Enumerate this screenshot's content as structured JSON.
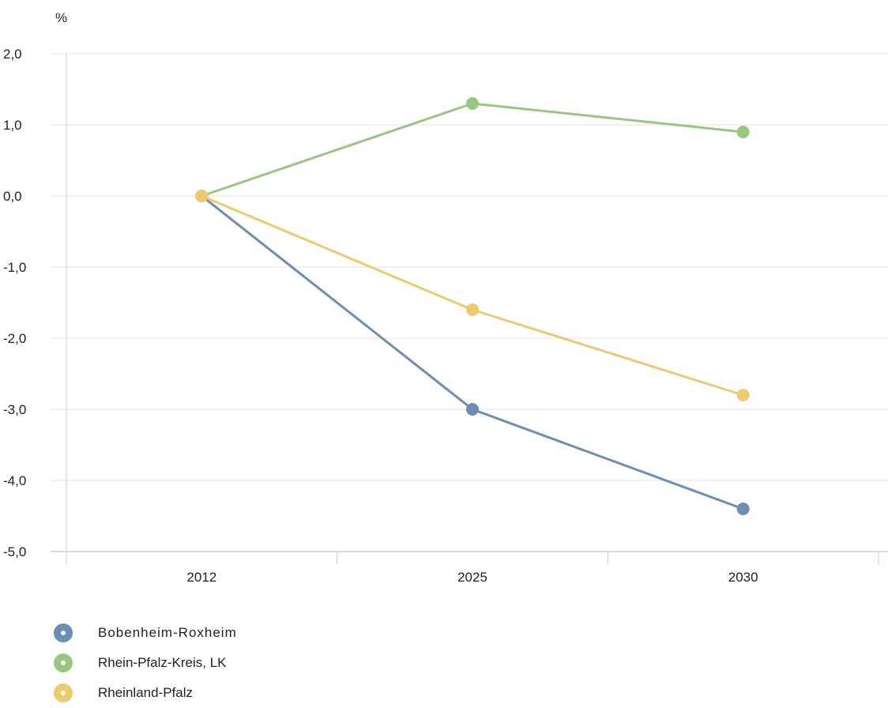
{
  "chart_data": {
    "type": "line",
    "unit_label": "%",
    "categories": [
      "2012",
      "2025",
      "2030"
    ],
    "y_ticks": [
      "2,0",
      "1,0",
      "0,0",
      "-1,0",
      "-2,0",
      "-3,0",
      "-4,0",
      "-5,0"
    ],
    "ylim": [
      -5,
      2
    ],
    "grid": true,
    "legend_position": "bottom-left",
    "series": [
      {
        "name": "Bobenheim-Roxheim",
        "color": "#6e8db5",
        "values": [
          0.0,
          -3.0,
          -4.4
        ]
      },
      {
        "name": "Rhein-Pfalz-Kreis, LK",
        "color": "#9ac77f",
        "values": [
          0.0,
          1.3,
          0.9
        ]
      },
      {
        "name": "Rheinland-Pfalz",
        "color": "#efc972",
        "values": [
          0.0,
          -1.6,
          -2.8
        ]
      }
    ]
  }
}
